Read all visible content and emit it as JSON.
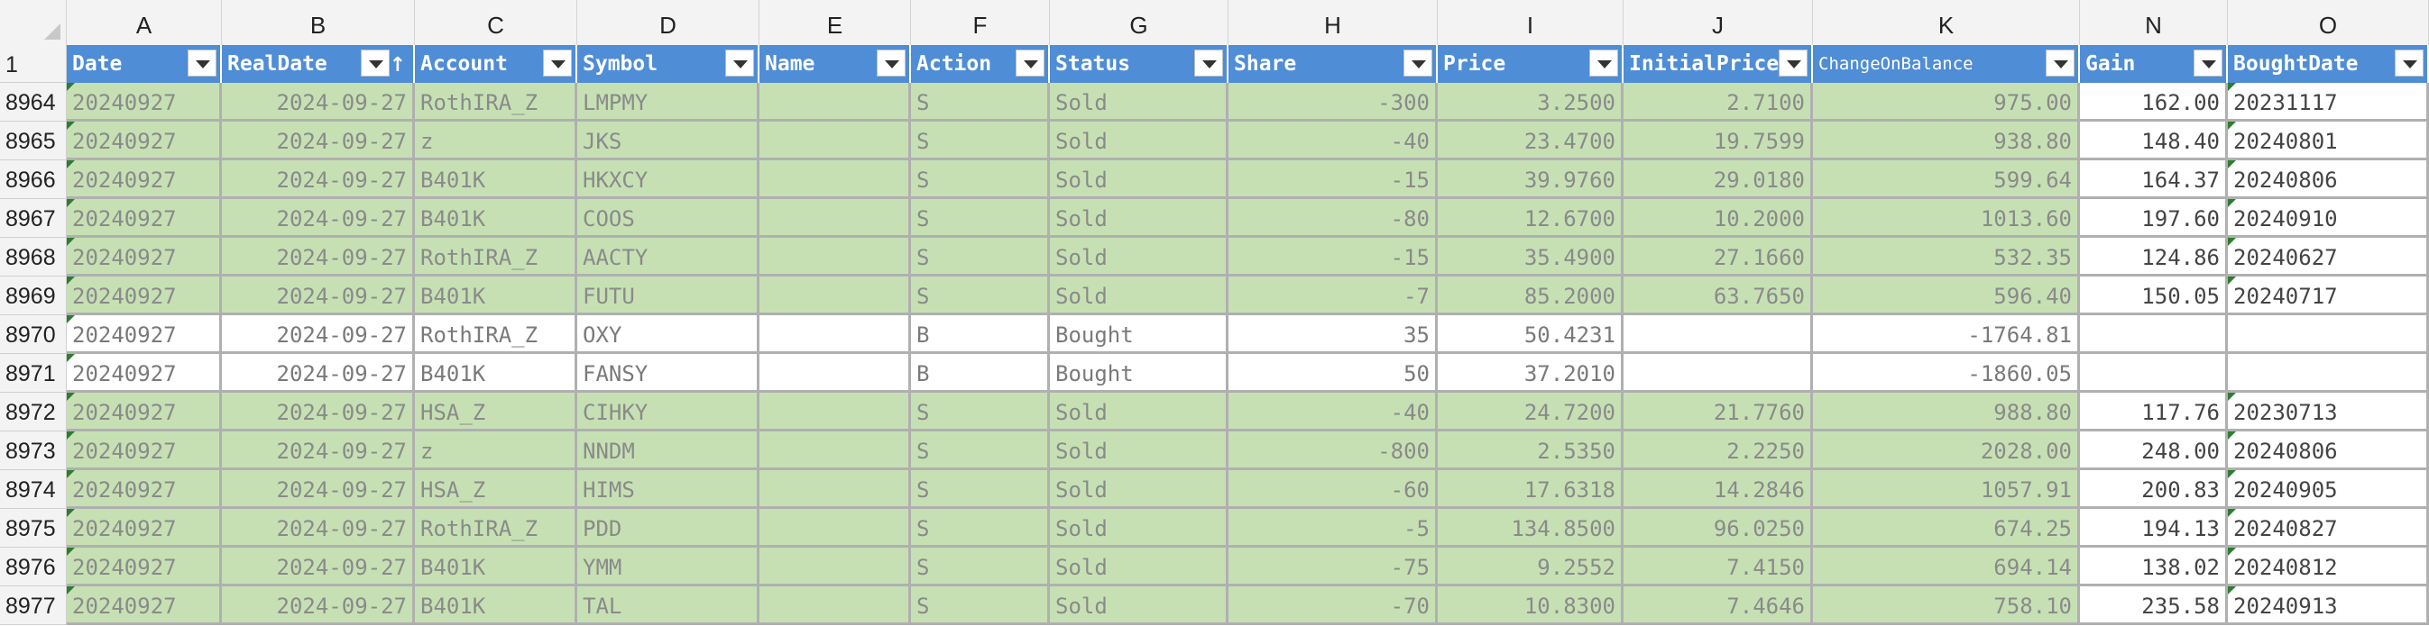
{
  "column_letters": [
    "A",
    "B",
    "C",
    "D",
    "E",
    "F",
    "G",
    "H",
    "I",
    "J",
    "K",
    "N",
    "O"
  ],
  "header_row_number": "1",
  "headers": [
    "Date",
    "RealDate",
    "Account",
    "Symbol",
    "Name",
    "Action",
    "Status",
    "Share",
    "Price",
    "InitialPrice",
    "ChangeOnBalance",
    "Gain",
    "BoughtDate"
  ],
  "sort_indicator_column": "RealDate",
  "colors": {
    "header_blue": "#4f8dd6",
    "sold_green": "#c6e0b4",
    "grid_gray": "#b0b0b0"
  },
  "icons": {
    "filter": "filter-dropdown-icon",
    "sort": "sort-ascending-icon"
  },
  "rows": [
    {
      "row": "8964",
      "date": "20240927",
      "realdate": "2024-09-27",
      "account": "RothIRA_Z",
      "symbol": "LMPMY",
      "name": "",
      "action": "S",
      "status": "Sold",
      "share": "-300",
      "price": "3.2500",
      "initial": "2.7100",
      "change": "975.00",
      "gain": "162.00",
      "bought": "20231117",
      "fill": "green"
    },
    {
      "row": "8965",
      "date": "20240927",
      "realdate": "2024-09-27",
      "account": "z",
      "symbol": "JKS",
      "name": "",
      "action": "S",
      "status": "Sold",
      "share": "-40",
      "price": "23.4700",
      "initial": "19.7599",
      "change": "938.80",
      "gain": "148.40",
      "bought": "20240801",
      "fill": "green"
    },
    {
      "row": "8966",
      "date": "20240927",
      "realdate": "2024-09-27",
      "account": "B401K",
      "symbol": "HKXCY",
      "name": "",
      "action": "S",
      "status": "Sold",
      "share": "-15",
      "price": "39.9760",
      "initial": "29.0180",
      "change": "599.64",
      "gain": "164.37",
      "bought": "20240806",
      "fill": "green"
    },
    {
      "row": "8967",
      "date": "20240927",
      "realdate": "2024-09-27",
      "account": "B401K",
      "symbol": "COOS",
      "name": "",
      "action": "S",
      "status": "Sold",
      "share": "-80",
      "price": "12.6700",
      "initial": "10.2000",
      "change": "1013.60",
      "gain": "197.60",
      "bought": "20240910",
      "fill": "green"
    },
    {
      "row": "8968",
      "date": "20240927",
      "realdate": "2024-09-27",
      "account": "RothIRA_Z",
      "symbol": "AACTY",
      "name": "",
      "action": "S",
      "status": "Sold",
      "share": "-15",
      "price": "35.4900",
      "initial": "27.1660",
      "change": "532.35",
      "gain": "124.86",
      "bought": "20240627",
      "fill": "green"
    },
    {
      "row": "8969",
      "date": "20240927",
      "realdate": "2024-09-27",
      "account": "B401K",
      "symbol": "FUTU",
      "name": "",
      "action": "S",
      "status": "Sold",
      "share": "-7",
      "price": "85.2000",
      "initial": "63.7650",
      "change": "596.40",
      "gain": "150.05",
      "bought": "20240717",
      "fill": "green"
    },
    {
      "row": "8970",
      "date": "20240927",
      "realdate": "2024-09-27",
      "account": "RothIRA_Z",
      "symbol": "OXY",
      "name": "",
      "action": "B",
      "status": "Bought",
      "share": "35",
      "price": "50.4231",
      "initial": "",
      "change": "-1764.81",
      "gain": "",
      "bought": "",
      "fill": "white"
    },
    {
      "row": "8971",
      "date": "20240927",
      "realdate": "2024-09-27",
      "account": "B401K",
      "symbol": "FANSY",
      "name": "",
      "action": "B",
      "status": "Bought",
      "share": "50",
      "price": "37.2010",
      "initial": "",
      "change": "-1860.05",
      "gain": "",
      "bought": "",
      "fill": "white"
    },
    {
      "row": "8972",
      "date": "20240927",
      "realdate": "2024-09-27",
      "account": "HSA_Z",
      "symbol": "CIHKY",
      "name": "",
      "action": "S",
      "status": "Sold",
      "share": "-40",
      "price": "24.7200",
      "initial": "21.7760",
      "change": "988.80",
      "gain": "117.76",
      "bought": "20230713",
      "fill": "green"
    },
    {
      "row": "8973",
      "date": "20240927",
      "realdate": "2024-09-27",
      "account": "z",
      "symbol": "NNDM",
      "name": "",
      "action": "S",
      "status": "Sold",
      "share": "-800",
      "price": "2.5350",
      "initial": "2.2250",
      "change": "2028.00",
      "gain": "248.00",
      "bought": "20240806",
      "fill": "green"
    },
    {
      "row": "8974",
      "date": "20240927",
      "realdate": "2024-09-27",
      "account": "HSA_Z",
      "symbol": "HIMS",
      "name": "",
      "action": "S",
      "status": "Sold",
      "share": "-60",
      "price": "17.6318",
      "initial": "14.2846",
      "change": "1057.91",
      "gain": "200.83",
      "bought": "20240905",
      "fill": "green"
    },
    {
      "row": "8975",
      "date": "20240927",
      "realdate": "2024-09-27",
      "account": "RothIRA_Z",
      "symbol": "PDD",
      "name": "",
      "action": "S",
      "status": "Sold",
      "share": "-5",
      "price": "134.8500",
      "initial": "96.0250",
      "change": "674.25",
      "gain": "194.13",
      "bought": "20240827",
      "fill": "green"
    },
    {
      "row": "8976",
      "date": "20240927",
      "realdate": "2024-09-27",
      "account": "B401K",
      "symbol": "YMM",
      "name": "",
      "action": "S",
      "status": "Sold",
      "share": "-75",
      "price": "9.2552",
      "initial": "7.4150",
      "change": "694.14",
      "gain": "138.02",
      "bought": "20240812",
      "fill": "green"
    },
    {
      "row": "8977",
      "date": "20240927",
      "realdate": "2024-09-27",
      "account": "B401K",
      "symbol": "TAL",
      "name": "",
      "action": "S",
      "status": "Sold",
      "share": "-70",
      "price": "10.8300",
      "initial": "7.4646",
      "change": "758.10",
      "gain": "235.58",
      "bought": "20240913",
      "fill": "green"
    }
  ]
}
